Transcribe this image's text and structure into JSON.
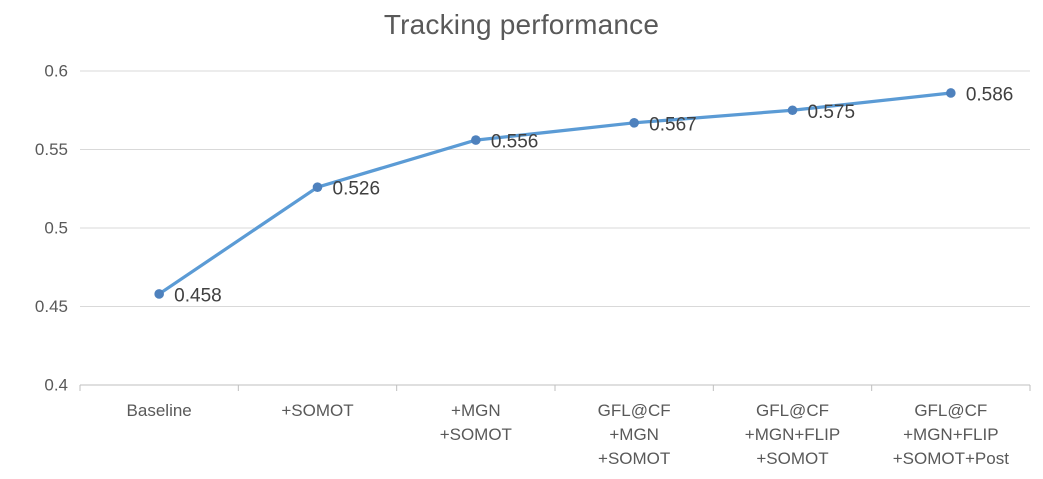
{
  "chart_data": {
    "type": "line",
    "title": "Tracking performance",
    "categories": [
      "Baseline",
      "+SOMOT",
      "+MGN\n+SOMOT",
      "GFL@CF\n+MGN\n+SOMOT",
      "GFL@CF\n+MGN+FLIP\n+SOMOT",
      "GFL@CF\n+MGN+FLIP\n+SOMOT+Post"
    ],
    "series": [
      {
        "name": "Tracking performance",
        "values": [
          0.458,
          0.526,
          0.556,
          0.567,
          0.575,
          0.586
        ]
      }
    ],
    "data_labels": [
      "0.458",
      "0.526",
      "0.556",
      "0.567",
      "0.575",
      "0.586"
    ],
    "xlabel": "",
    "ylabel": "",
    "ylim": [
      0.4,
      0.6
    ],
    "y_ticks": [
      0.4,
      0.45,
      0.5,
      0.55,
      0.6
    ],
    "y_tick_labels": [
      "0.4",
      "0.45",
      "0.5",
      "0.55",
      "0.6"
    ],
    "grid": true,
    "legend_position": "none",
    "colors": {
      "line": "#5B9BD5",
      "marker": "#4E81BD",
      "gridline": "#D9D9D9",
      "axis_line": "#BFBFBF",
      "axis_text": "#595959",
      "title_text": "#595959",
      "data_label_text": "#404040",
      "background": "#FFFFFF"
    }
  }
}
